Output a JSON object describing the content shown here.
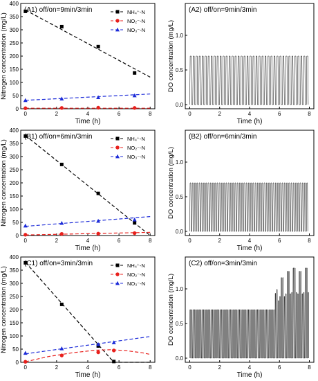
{
  "figure": {
    "colors": {
      "nh4": "#000000",
      "no2": "#e8201c",
      "no3": "#1c2bd8",
      "do": "#000000",
      "axis": "#000000"
    },
    "panels": [
      {
        "label": "(A1) off/on=9min/3min",
        "kind": "nitrogen",
        "ylabel": "Nitrogen concentration (mg/L)",
        "xlabel": "Time (h)",
        "ylim": [
          0,
          400
        ],
        "xlim": [
          -0.3,
          8.3
        ],
        "xticks": [
          "0",
          "2",
          "4",
          "6",
          "8"
        ],
        "yticks": [
          "0",
          "50",
          "100",
          "150",
          "200",
          "250",
          "300",
          "350",
          "400"
        ],
        "legend": [
          {
            "key": "nh4",
            "label": "NH₄⁺-N"
          },
          {
            "key": "no2",
            "label": "NO₂⁻-N"
          },
          {
            "key": "no3",
            "label": "NO₃⁻-N"
          }
        ],
        "series": [
          {
            "key": "nh4",
            "marker": "square",
            "points": [
              [
                0,
                370
              ],
              [
                2.33,
                312
              ],
              [
                4.67,
                236
              ],
              [
                7,
                136
              ]
            ],
            "fit": [
              [
                0,
                375
              ],
              [
                8,
                120
              ]
            ]
          },
          {
            "key": "no2",
            "marker": "circle",
            "points": [
              [
                0,
                2
              ],
              [
                2.33,
                3
              ],
              [
                4.67,
                4
              ],
              [
                7,
                3
              ]
            ],
            "fit": [
              [
                0,
                2
              ],
              [
                8,
                2
              ]
            ]
          },
          {
            "key": "no3",
            "marker": "triangle",
            "points": [
              [
                0,
                32
              ],
              [
                2.33,
                38
              ],
              [
                4.67,
                43
              ],
              [
                7,
                50
              ]
            ],
            "fit": [
              [
                0,
                32
              ],
              [
                8,
                56
              ]
            ]
          }
        ]
      },
      {
        "label": "(A2) off/on=9min/3min",
        "kind": "do",
        "ylabel": "DO concentration (mg/L)",
        "xlabel": "Time (h)",
        "ylim": [
          -0.06,
          1.46
        ],
        "xlim": [
          -0.3,
          8.3
        ],
        "xticks": [
          "0",
          "2",
          "4",
          "6",
          "8"
        ],
        "yticks": [
          "0.0",
          "0.5",
          "1.0"
        ],
        "do": {
          "t_end": 8,
          "cycle_h": 0.2,
          "base": 0.0,
          "plateau": 0.7,
          "spikes": []
        }
      },
      {
        "label": "(B1) off/on=6min/3min",
        "kind": "nitrogen",
        "ylabel": "Nitrogen concentration (mg/L)",
        "xlabel": "Time (h)",
        "ylim": [
          0,
          400
        ],
        "xlim": [
          -0.3,
          8.3
        ],
        "xticks": [
          "0",
          "2",
          "4",
          "6",
          "8"
        ],
        "yticks": [
          "0",
          "50",
          "100",
          "150",
          "200",
          "250",
          "300",
          "350",
          "400"
        ],
        "legend": [
          {
            "key": "nh4",
            "label": "NH₄⁺-N"
          },
          {
            "key": "no2",
            "label": "NO₂⁻-N"
          },
          {
            "key": "no3",
            "label": "NO₃⁻-N"
          }
        ],
        "series": [
          {
            "key": "nh4",
            "marker": "square",
            "points": [
              [
                0,
                378
              ],
              [
                2.33,
                270
              ],
              [
                4.67,
                160
              ],
              [
                7,
                48
              ]
            ],
            "fit": [
              [
                0,
                380
              ],
              [
                8,
                0
              ]
            ]
          },
          {
            "key": "no2",
            "marker": "circle",
            "points": [
              [
                0,
                3
              ],
              [
                2.33,
                6
              ],
              [
                4.67,
                7
              ],
              [
                7,
                9
              ]
            ],
            "fit": [
              [
                0,
                2
              ],
              [
                8,
                12
              ]
            ]
          },
          {
            "key": "no3",
            "marker": "triangle",
            "points": [
              [
                0,
                37
              ],
              [
                2.33,
                47
              ],
              [
                4.67,
                55
              ],
              [
                7,
                60
              ]
            ],
            "fit": [
              [
                0,
                35
              ],
              [
                8,
                72
              ]
            ]
          }
        ]
      },
      {
        "label": "(B2) off/on=6min/3min",
        "kind": "do",
        "ylabel": "DO concentration (mg/L)",
        "xlabel": "Time (h)",
        "ylim": [
          -0.06,
          1.46
        ],
        "xlim": [
          -0.3,
          8.3
        ],
        "xticks": [
          "0",
          "2",
          "4",
          "6",
          "8"
        ],
        "yticks": [
          "0.0",
          "0.5",
          "1.0"
        ],
        "do": {
          "t_end": 8,
          "cycle_h": 0.15,
          "base": 0.0,
          "plateau": 0.7,
          "spikes": []
        }
      },
      {
        "label": "(C1) off/on=3min/3min",
        "kind": "nitrogen",
        "ylabel": "Nitrogen concentration (mg/L)",
        "xlabel": "Time (h)",
        "ylim": [
          0,
          400
        ],
        "xlim": [
          -0.3,
          8.3
        ],
        "xticks": [
          "0",
          "2",
          "4",
          "6",
          "8"
        ],
        "yticks": [
          "0",
          "50",
          "100",
          "150",
          "200",
          "250",
          "300",
          "350",
          "400"
        ],
        "legend": [
          {
            "key": "nh4",
            "label": "NH₄⁺-N"
          },
          {
            "key": "no2",
            "label": "NO₂⁻-N"
          },
          {
            "key": "no3",
            "label": "NO₃⁻-N"
          }
        ],
        "series": [
          {
            "key": "nh4",
            "marker": "square",
            "points": [
              [
                0,
                378
              ],
              [
                2.33,
                220
              ],
              [
                4.67,
                62
              ],
              [
                5.67,
                3
              ]
            ],
            "fit": [
              [
                0,
                380
              ],
              [
                5.67,
                0
              ],
              [
                8,
                0
              ]
            ]
          },
          {
            "key": "no2",
            "marker": "circle",
            "points": [
              [
                0,
                2
              ],
              [
                2.33,
                26
              ],
              [
                4.67,
                38
              ],
              [
                5.67,
                45
              ]
            ],
            "fit": [
              [
                0,
                2
              ],
              [
                1.5,
                22
              ],
              [
                3,
                36
              ],
              [
                4.5,
                46
              ],
              [
                5.5,
                48
              ],
              [
                6.5,
                44
              ],
              [
                7.5,
                36
              ],
              [
                8,
                30
              ]
            ]
          },
          {
            "key": "no3",
            "marker": "triangle",
            "points": [
              [
                0,
                35
              ],
              [
                2.33,
                52
              ],
              [
                4.67,
                68
              ],
              [
                5.67,
                75
              ]
            ],
            "fit": [
              [
                0,
                32
              ],
              [
                8,
                98
              ]
            ]
          }
        ]
      },
      {
        "label": "(C2) off/on=3min/3min",
        "kind": "do",
        "ylabel": "DO concentration (mg/L)",
        "xlabel": "Time (h)",
        "ylim": [
          -0.06,
          1.46
        ],
        "xlim": [
          -0.3,
          8.3
        ],
        "xticks": [
          "0",
          "2",
          "4",
          "6",
          "8"
        ],
        "yticks": [
          "0.0",
          "0.5",
          "1.0"
        ],
        "do": {
          "t_end": 8,
          "cycle_h": 0.1,
          "base": 0.0,
          "plateau": 0.7,
          "spikes": [
            [
              5.6,
              5.95,
              1.0
            ],
            [
              5.95,
              6.35,
              1.2
            ],
            [
              6.35,
              6.75,
              1.3
            ],
            [
              6.75,
              7.15,
              1.35
            ],
            [
              7.15,
              7.55,
              1.3
            ],
            [
              7.55,
              7.95,
              1.35
            ]
          ]
        }
      }
    ]
  }
}
